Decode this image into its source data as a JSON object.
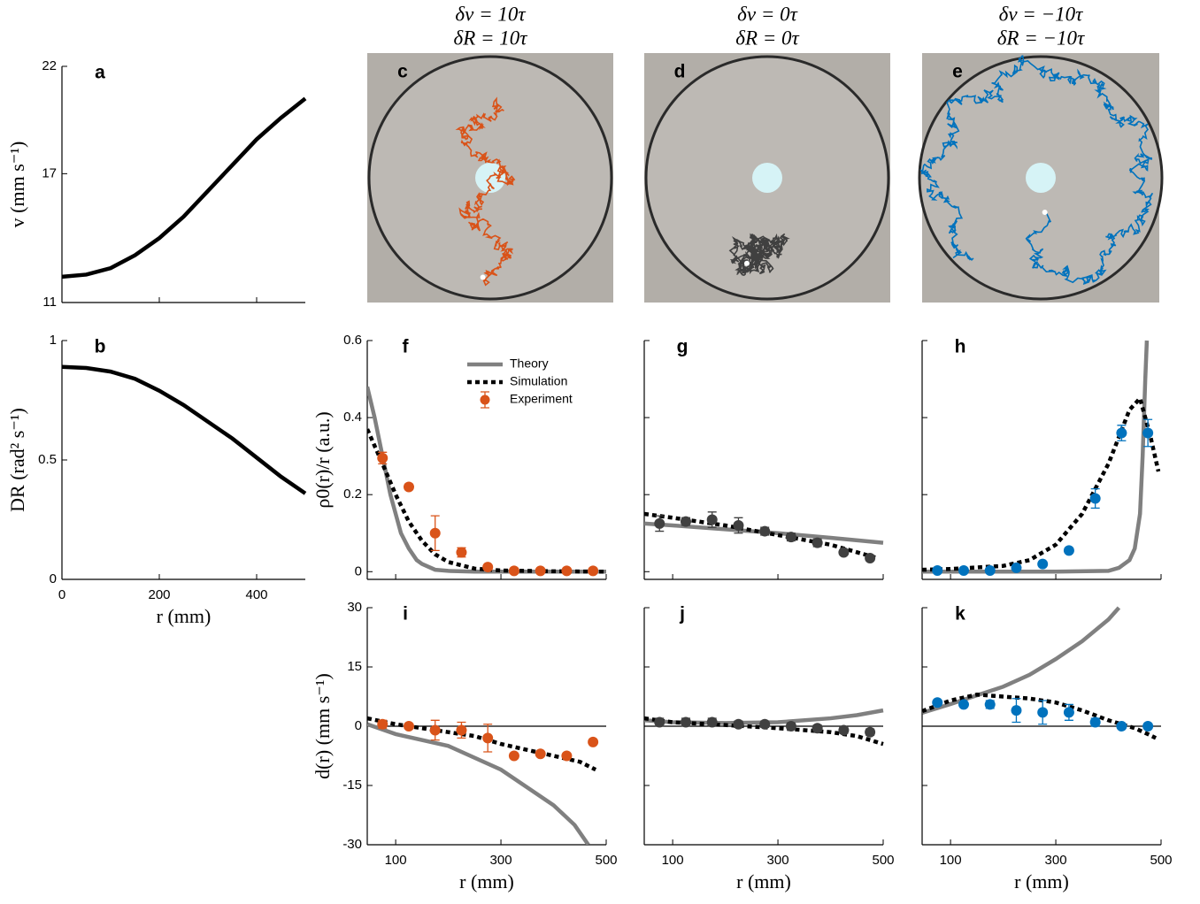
{
  "chart_data": [
    {
      "type": "line",
      "label": "a",
      "ylabel": "v (mm s⁻¹)",
      "xlim": [
        0,
        500
      ],
      "ylim": [
        11,
        22
      ],
      "xticks": [
        0,
        200,
        400
      ],
      "xticklabels": false,
      "yticks": [
        11,
        17,
        22
      ],
      "yticklabels": true,
      "color": "#000000",
      "x": [
        0,
        50,
        100,
        150,
        200,
        250,
        300,
        350,
        400,
        450,
        500
      ],
      "values": [
        12.2,
        12.3,
        12.6,
        13.2,
        14.0,
        15.0,
        16.2,
        17.4,
        18.6,
        19.6,
        20.5
      ]
    },
    {
      "type": "line",
      "label": "b",
      "ylabel": "DR (rad² s⁻¹)",
      "xlabel": "r (mm)",
      "xlim": [
        0,
        500
      ],
      "ylim": [
        0,
        1
      ],
      "xticks": [
        0,
        200,
        400
      ],
      "xticklabels": true,
      "yticks": [
        0,
        0.5,
        1
      ],
      "yticklabels": true,
      "color": "#000000",
      "x": [
        0,
        50,
        100,
        150,
        200,
        250,
        300,
        350,
        400,
        450,
        500
      ],
      "values": [
        0.89,
        0.885,
        0.87,
        0.84,
        0.79,
        0.73,
        0.66,
        0.59,
        0.51,
        0.43,
        0.36
      ]
    },
    {
      "type": "image",
      "label": "c",
      "title": [
        "δv = 10τ",
        "δR = 10τ"
      ],
      "color": "#d95319"
    },
    {
      "type": "image",
      "label": "d",
      "title": [
        "δv = 0τ",
        "δR = 0τ"
      ],
      "color": "#404040"
    },
    {
      "type": "image",
      "label": "e",
      "title": [
        "δv = −10τ",
        "δR = −10τ"
      ],
      "color": "#0072bd"
    },
    {
      "type": "panel",
      "label": "f",
      "ylabel": "ρ0(r)/r (a.u.)",
      "xlim": [
        46,
        500
      ],
      "ylim": [
        -0.02,
        0.6
      ],
      "xticks": [
        100,
        300,
        500
      ],
      "xticklabels": false,
      "yticks": [
        0,
        0.2,
        0.4,
        0.6
      ],
      "yticklabels": true,
      "legend": "upper right",
      "series": [
        {
          "name": "Theory",
          "color": "#808080",
          "style": "solid",
          "x": [
            46,
            60,
            75,
            90,
            100,
            110,
            125,
            140,
            150,
            175,
            200,
            250,
            300,
            400,
            500
          ],
          "values": [
            0.48,
            0.4,
            0.3,
            0.2,
            0.15,
            0.1,
            0.06,
            0.03,
            0.02,
            0.005,
            0.002,
            0,
            0,
            0,
            0
          ]
        },
        {
          "name": "Simulation",
          "color": "#000000",
          "style": "dotted",
          "x": [
            46,
            75,
            100,
            125,
            150,
            175,
            200,
            250,
            300,
            400,
            500
          ],
          "values": [
            0.37,
            0.28,
            0.2,
            0.13,
            0.08,
            0.045,
            0.025,
            0.008,
            0.003,
            0.001,
            0
          ]
        },
        {
          "name": "Experiment",
          "color": "#d95319",
          "style": "points",
          "x": [
            75,
            125,
            175,
            225,
            275,
            325,
            375,
            425,
            475
          ],
          "values": [
            0.295,
            0.22,
            0.1,
            0.05,
            0.012,
            0.002,
            0.002,
            0.002,
            0.002
          ],
          "errors": [
            0.015,
            0.007,
            0.045,
            0.012,
            0.005,
            0.003,
            0.003,
            0.003,
            0.003
          ]
        }
      ]
    },
    {
      "type": "panel",
      "label": "g",
      "xlim": [
        46,
        500
      ],
      "ylim": [
        -0.02,
        0.6
      ],
      "xticks": [
        100,
        300,
        500
      ],
      "xticklabels": false,
      "yticks": [
        0,
        0.2,
        0.4,
        0.6
      ],
      "yticklabels": false,
      "series": [
        {
          "color": "#808080",
          "style": "solid",
          "x": [
            46,
            100,
            200,
            300,
            400,
            500
          ],
          "values": [
            0.125,
            0.12,
            0.11,
            0.1,
            0.088,
            0.075
          ]
        },
        {
          "color": "#000000",
          "style": "dotted",
          "x": [
            46,
            100,
            200,
            300,
            400,
            490
          ],
          "values": [
            0.15,
            0.14,
            0.12,
            0.095,
            0.07,
            0.035
          ]
        },
        {
          "color": "#404040",
          "style": "points",
          "x": [
            75,
            125,
            175,
            225,
            275,
            325,
            375,
            425,
            475
          ],
          "values": [
            0.125,
            0.13,
            0.135,
            0.12,
            0.105,
            0.09,
            0.075,
            0.05,
            0.035
          ],
          "errors": [
            0.02,
            0.01,
            0.02,
            0.02,
            0.01,
            0.01,
            0.01,
            0.005,
            0.005
          ]
        }
      ]
    },
    {
      "type": "panel",
      "label": "h",
      "xlim": [
        46,
        500
      ],
      "ylim": [
        -0.02,
        0.6
      ],
      "xticks": [
        100,
        300,
        500
      ],
      "xticklabels": false,
      "yticks": [
        0,
        0.2,
        0.4,
        0.6
      ],
      "yticklabels": false,
      "series": [
        {
          "color": "#808080",
          "style": "solid",
          "x": [
            46,
            100,
            200,
            300,
            400,
            420,
            440,
            450,
            460,
            465,
            470,
            473
          ],
          "values": [
            0,
            0,
            0,
            0,
            0.002,
            0.01,
            0.03,
            0.06,
            0.15,
            0.3,
            0.5,
            0.6
          ]
        },
        {
          "color": "#000000",
          "style": "dotted",
          "x": [
            46,
            100,
            200,
            250,
            300,
            350,
            400,
            440,
            460,
            480,
            495
          ],
          "values": [
            0.005,
            0.007,
            0.015,
            0.03,
            0.07,
            0.15,
            0.28,
            0.42,
            0.45,
            0.35,
            0.26
          ]
        },
        {
          "color": "#0072bd",
          "style": "points",
          "x": [
            75,
            125,
            175,
            225,
            275,
            325,
            375,
            425,
            475
          ],
          "values": [
            0.003,
            0.003,
            0.003,
            0.01,
            0.02,
            0.055,
            0.19,
            0.36,
            0.36
          ],
          "errors": [
            0.003,
            0.003,
            0.003,
            0.004,
            0.005,
            0.006,
            0.025,
            0.02,
            0.035
          ]
        }
      ]
    },
    {
      "type": "panel",
      "label": "i",
      "ylabel": "d(r) (mm s⁻¹)",
      "xlabel": "r (mm)",
      "xlim": [
        46,
        500
      ],
      "ylim": [
        -30,
        30
      ],
      "xticks": [
        100,
        300,
        500
      ],
      "xticklabels": true,
      "yticks": [
        -30,
        -15,
        0,
        15,
        30
      ],
      "yticklabels": true,
      "zero_line": true,
      "series": [
        {
          "color": "#808080",
          "style": "solid",
          "x": [
            46,
            100,
            200,
            300,
            400,
            440,
            466
          ],
          "values": [
            0.5,
            -2,
            -5,
            -11,
            -20,
            -25,
            -30
          ]
        },
        {
          "color": "#000000",
          "style": "dotted",
          "x": [
            46,
            100,
            150,
            200,
            250,
            300,
            350,
            400,
            450,
            480
          ],
          "values": [
            2,
            0.5,
            -0.5,
            -1.5,
            -2.5,
            -4.5,
            -6,
            -7.5,
            -9,
            -11
          ]
        },
        {
          "color": "#d95319",
          "style": "points",
          "x": [
            75,
            125,
            175,
            225,
            275,
            325,
            375,
            425,
            475
          ],
          "values": [
            0.5,
            0,
            -1,
            -1,
            -3,
            -7.5,
            -7,
            -7.5,
            -4
          ],
          "errors": [
            1,
            0.5,
            2.5,
            2,
            3.5,
            0.5,
            0.5,
            0.5,
            0.5
          ]
        }
      ]
    },
    {
      "type": "panel",
      "label": "j",
      "xlabel": "r (mm)",
      "xlim": [
        46,
        500
      ],
      "ylim": [
        -30,
        30
      ],
      "xticks": [
        100,
        300,
        500
      ],
      "xticklabels": true,
      "yticks": [
        -30,
        -15,
        0,
        15,
        30
      ],
      "yticklabels": false,
      "zero_line": true,
      "series": [
        {
          "color": "#808080",
          "style": "solid",
          "x": [
            46,
            100,
            200,
            300,
            400,
            450,
            500
          ],
          "values": [
            1.5,
            1,
            0.8,
            1,
            2,
            2.8,
            4
          ]
        },
        {
          "color": "#000000",
          "style": "dotted",
          "x": [
            46,
            100,
            200,
            300,
            400,
            450,
            500
          ],
          "values": [
            2,
            1,
            0.3,
            -0.5,
            -1.5,
            -2.5,
            -4.5
          ]
        },
        {
          "color": "#404040",
          "style": "points",
          "x": [
            75,
            125,
            175,
            225,
            275,
            325,
            375,
            425,
            475
          ],
          "values": [
            1,
            1,
            1,
            0.5,
            0.5,
            0,
            -0.5,
            -1,
            -1.5
          ],
          "errors": [
            1,
            1,
            1,
            0.8,
            0.8,
            0.8,
            0.8,
            0.8,
            0.8
          ]
        }
      ]
    },
    {
      "type": "panel",
      "label": "k",
      "xlabel": "r (mm)",
      "xlim": [
        46,
        500
      ],
      "ylim": [
        -30,
        30
      ],
      "xticks": [
        100,
        300,
        500
      ],
      "xticklabels": true,
      "yticks": [
        -30,
        -15,
        0,
        15,
        30
      ],
      "yticklabels": false,
      "zero_line": true,
      "series": [
        {
          "color": "#808080",
          "style": "solid",
          "x": [
            46,
            100,
            150,
            200,
            250,
            300,
            350,
            400,
            420
          ],
          "values": [
            3.4,
            5.6,
            7.8,
            10,
            13,
            17,
            21.5,
            27,
            30
          ]
        },
        {
          "color": "#000000",
          "style": "dotted",
          "x": [
            46,
            100,
            150,
            200,
            250,
            300,
            350,
            400,
            450,
            475,
            490
          ],
          "values": [
            3.8,
            6.5,
            8,
            7.5,
            7,
            6,
            4,
            1.5,
            -0.5,
            -2,
            -3
          ]
        },
        {
          "color": "#0072bd",
          "style": "points",
          "x": [
            75,
            125,
            175,
            225,
            275,
            325,
            375,
            425,
            475
          ],
          "values": [
            6,
            5.5,
            5.5,
            4,
            3.5,
            3.5,
            1,
            0,
            0
          ],
          "errors": [
            0.5,
            0.5,
            1,
            3,
            3,
            2,
            1,
            0.5,
            0.5
          ]
        }
      ]
    }
  ]
}
